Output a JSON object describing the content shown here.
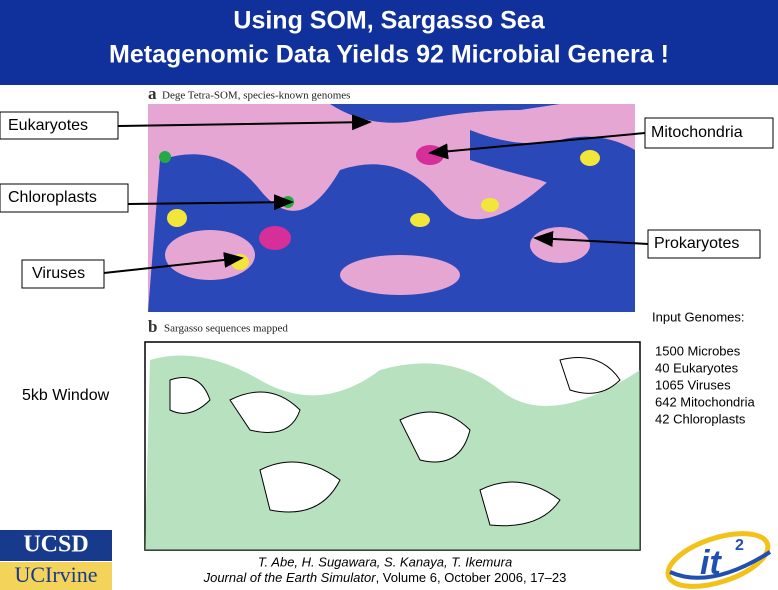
{
  "header": {
    "title_lines": [
      "Using SOM, Sargasso Sea",
      "Metagenomic Data Yields 92 Microbial Genera !"
    ]
  },
  "panel_a": {
    "letter": "a",
    "caption": "Dege Tetra-SOM, species-known genomes"
  },
  "panel_b": {
    "letter": "b",
    "caption": "Sargasso sequences mapped"
  },
  "labels": {
    "eukaryotes": "Eukaryotes",
    "mitochondria": "Mitochondria",
    "chloroplasts": "Chloroplasts",
    "prokaryotes": "Prokaryotes",
    "viruses": "Viruses",
    "window": "5kb Window"
  },
  "input_genomes": {
    "heading": "Input Genomes:",
    "items": [
      "1500 Microbes",
      "40 Eukaryotes",
      "1065 Viruses",
      "642 Mitochondria",
      "42 Chloroplasts"
    ]
  },
  "citation": {
    "authors": "T. Abe, H. Sugawara, S. Kanaya, T. Ikemura",
    "journal": "Journal of the Earth Simulator",
    "details": ", Volume 6, October 2006, 17–23"
  },
  "logos": {
    "ucsd": "UCSD",
    "ucirvine": "UCIrvine",
    "it": "it",
    "it_sup": "2"
  }
}
